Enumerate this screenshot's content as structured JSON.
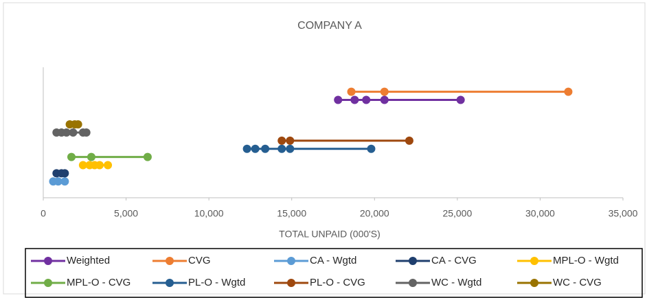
{
  "chart_data": {
    "type": "line",
    "title": "COMPANY A",
    "x_label": "TOTAL UNPAID (000'S)",
    "xlim": [
      0,
      35000
    ],
    "xticks": [
      0,
      {
        "value": 5000,
        "label": "5,000"
      },
      {
        "value": 10000,
        "label": "10,000"
      },
      {
        "value": 15000,
        "label": "15,000"
      },
      {
        "value": 20000,
        "label": "20,000"
      },
      {
        "value": 25000,
        "label": "25,000"
      },
      {
        "value": 30000,
        "label": "30,000"
      },
      {
        "value": 35000,
        "label": "35,000"
      }
    ],
    "ylim": [
      0,
      16
    ],
    "series": [
      {
        "name": "Weighted",
        "color": "#7030a0",
        "x": [
          17800,
          18800,
          19500,
          20600,
          25200
        ],
        "values": [
          12,
          12,
          12,
          12,
          12
        ]
      },
      {
        "name": "CVG",
        "color": "#ed7d31",
        "x": [
          18600,
          20600,
          31700
        ],
        "values": [
          13,
          13,
          13
        ]
      },
      {
        "name": "CA - Wgtd",
        "color": "#5b9bd5",
        "x": [
          600,
          900,
          1300
        ],
        "values": [
          2,
          2,
          2
        ]
      },
      {
        "name": "CA - CVG",
        "color": "#1f3f6e",
        "x": [
          800,
          1100,
          1300
        ],
        "values": [
          3,
          3,
          3
        ]
      },
      {
        "name": "MPL-O - Wgtd",
        "color": "#ffc000",
        "x": [
          2400,
          2800,
          3100,
          3400,
          3900
        ],
        "values": [
          4,
          4,
          4,
          4,
          4
        ]
      },
      {
        "name": "MPL-O - CVG",
        "color": "#70ad47",
        "x": [
          1700,
          2900,
          6300
        ],
        "values": [
          5,
          5,
          5
        ]
      },
      {
        "name": "PL-O - Wgtd",
        "color": "#255e91",
        "x": [
          12300,
          12800,
          13400,
          14400,
          14900,
          19800
        ],
        "values": [
          6,
          6,
          6,
          6,
          6,
          6
        ]
      },
      {
        "name": "PL-O - CVG",
        "color": "#9e480e",
        "x": [
          14400,
          14900,
          22100
        ],
        "values": [
          7,
          7,
          7
        ]
      },
      {
        "name": "WC - Wgtd",
        "color": "#636363",
        "x": [
          800,
          1100,
          1400,
          1800,
          2400,
          2600
        ],
        "values": [
          8,
          8,
          8,
          8,
          8,
          8
        ]
      },
      {
        "name": "WC - CVG",
        "color": "#997300",
        "x": [
          1600,
          1900,
          2100
        ],
        "values": [
          9,
          9,
          9
        ]
      }
    ]
  }
}
